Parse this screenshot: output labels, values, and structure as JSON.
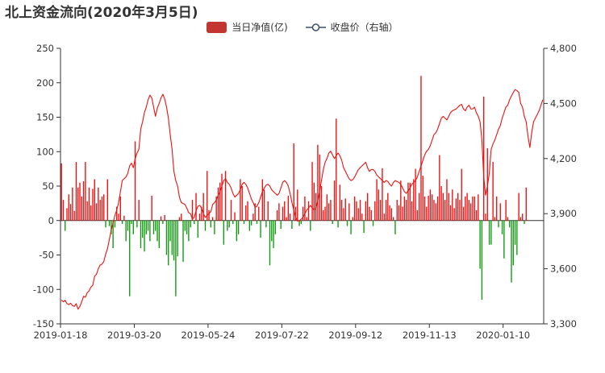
{
  "title": "北上资金流向(2020年3月5日)",
  "legend": {
    "net_inflow_label": "当日净值(亿)",
    "close_label": "收盘价（右轴）"
  },
  "colors": {
    "up": "#ee1111",
    "down": "#119911",
    "legend_bar": "#c23531",
    "line": "#ee1111",
    "axis": "#333333"
  },
  "chart_data": {
    "type": "bar+line",
    "title": "北上资金流向(2020年3月5日)",
    "y_left": {
      "range": [
        -150,
        250
      ],
      "ticks": [
        -150,
        -100,
        -50,
        0,
        50,
        100,
        150,
        200,
        250
      ]
    },
    "y_right": {
      "range": [
        3300,
        4800
      ],
      "ticks": [
        "3,300",
        "3,600",
        "3,900",
        "4,200",
        "4,500",
        "4,800"
      ]
    },
    "x_tick_labels": [
      "2019-01-18",
      "2019-03-20",
      "2019-05-24",
      "2019-07-22",
      "2019-09-12",
      "2019-11-13",
      "2020-01-10"
    ],
    "x_tick_index": [
      0,
      40,
      80,
      120,
      160,
      200,
      240
    ],
    "series": [
      {
        "name": "当日净值(亿)",
        "type": "bar",
        "values": [
          83,
          30,
          -15,
          18,
          38,
          24,
          48,
          14,
          85,
          48,
          55,
          35,
          57,
          85,
          28,
          48,
          22,
          46,
          60,
          25,
          48,
          30,
          35,
          38,
          -10,
          60,
          -8,
          -20,
          -40,
          -10,
          20,
          10,
          35,
          -5,
          7,
          -30,
          -15,
          -110,
          -5,
          -20,
          115,
          -10,
          30,
          -40,
          -25,
          -45,
          -20,
          -15,
          -30,
          36,
          -20,
          -15,
          -30,
          -40,
          6,
          -5,
          8,
          -50,
          -65,
          -30,
          -50,
          -58,
          -110,
          -52,
          5,
          10,
          -60,
          -15,
          -20,
          -30,
          -10,
          30,
          -5,
          40,
          -25,
          10,
          20,
          40,
          -15,
          72,
          15,
          -10,
          5,
          -20,
          35,
          48,
          55,
          68,
          -35,
          72,
          -15,
          -10,
          30,
          -5,
          12,
          -30,
          -20,
          60,
          50,
          -5,
          22,
          28,
          -15,
          -7,
          10,
          25,
          -5,
          20,
          -25,
          60,
          45,
          -10,
          28,
          -65,
          -30,
          -40,
          -20,
          15,
          25,
          -12,
          20,
          28,
          5,
          36,
          10,
          -12,
          112,
          20,
          45,
          -8,
          -5,
          20,
          35,
          5,
          28,
          -15,
          85,
          55,
          40,
          110,
          96,
          50,
          15,
          20,
          38,
          25,
          30,
          -5,
          58,
          148,
          -10,
          52,
          30,
          18,
          32,
          -8,
          25,
          -20,
          5,
          35,
          28,
          18,
          30,
          10,
          -18,
          28,
          40,
          20,
          15,
          -8,
          28,
          60,
          45,
          30,
          76,
          10,
          30,
          40,
          22,
          18,
          5,
          -20,
          30,
          22,
          58,
          20,
          35,
          30,
          55,
          55,
          28,
          60,
          75,
          15,
          40,
          210,
          65,
          35,
          20,
          36,
          45,
          38,
          30,
          25,
          35,
          95,
          50,
          40,
          30,
          60,
          40,
          22,
          45,
          18,
          32,
          40,
          30,
          75,
          20,
          35,
          40,
          30,
          25,
          35,
          35,
          15,
          38,
          -70,
          -115,
          180,
          10,
          105,
          -35,
          -35,
          85,
          5,
          35,
          -10,
          25,
          -20,
          -55,
          30,
          5,
          -10,
          -90,
          -65,
          -35,
          -50,
          40,
          5,
          10,
          -5,
          48
        ]
      },
      {
        "name": "收盘价（右轴）",
        "type": "line",
        "axis": "right",
        "values": [
          3430,
          3420,
          3428,
          3410,
          3405,
          3412,
          3400,
          3395,
          3410,
          3380,
          3395,
          3420,
          3450,
          3445,
          3470,
          3480,
          3500,
          3510,
          3560,
          3570,
          3600,
          3620,
          3625,
          3640,
          3680,
          3710,
          3760,
          3810,
          3850,
          3890,
          3920,
          3960,
          4020,
          4080,
          4090,
          4100,
          4120,
          4160,
          4175,
          4150,
          4200,
          4230,
          4250,
          4360,
          4400,
          4450,
          4480,
          4520,
          4545,
          4530,
          4480,
          4430,
          4475,
          4500,
          4530,
          4550,
          4525,
          4480,
          4420,
          4330,
          4250,
          4130,
          4080,
          4050,
          3990,
          3960,
          3955,
          3950,
          3930,
          3905,
          3900,
          3870,
          3880,
          3915,
          3940,
          3945,
          3930,
          3900,
          3880,
          3890,
          3900,
          3910,
          3950,
          3960,
          3975,
          4000,
          4020,
          4050,
          4080,
          4090,
          4070,
          4060,
          4040,
          4010,
          3990,
          4000,
          4010,
          4030,
          4060,
          4070,
          4060,
          4040,
          4010,
          3980,
          3960,
          3935,
          3940,
          3960,
          3990,
          4020,
          4040,
          4055,
          4060,
          4050,
          4030,
          4020,
          4010,
          4000,
          4010,
          4040,
          4070,
          4080,
          4070,
          4050,
          4010,
          3960,
          3920,
          3880,
          3860,
          3860,
          3870,
          3880,
          3900,
          3920,
          3930,
          3945,
          3930,
          3920,
          3930,
          3970,
          4020,
          4080,
          4140,
          4180,
          4200,
          4230,
          4240,
          4220,
          4200,
          4215,
          4230,
          4215,
          4190,
          4150,
          4130,
          4110,
          4090,
          4080,
          4085,
          4100,
          4120,
          4140,
          4150,
          4160,
          4170,
          4180,
          4150,
          4130,
          4140,
          4140,
          4130,
          4110,
          4100,
          4090,
          4080,
          4070,
          4080,
          4075,
          4060,
          4050,
          4070,
          4080,
          4075,
          4070,
          4060,
          4040,
          4020,
          4010,
          4025,
          4040,
          4060,
          4070,
          4080,
          4100,
          4130,
          4160,
          4190,
          4220,
          4240,
          4250,
          4270,
          4300,
          4330,
          4340,
          4360,
          4390,
          4420,
          4430,
          4420,
          4410,
          4430,
          4450,
          4460,
          4465,
          4470,
          4480,
          4490,
          4495,
          4470,
          4460,
          4480,
          4490,
          4470,
          4470,
          4480,
          4450,
          4430,
          4400,
          4300,
          4100,
          4000,
          4050,
          4120,
          4250,
          4280,
          4300,
          4330,
          4360,
          4380,
          4420,
          4450,
          4480,
          4490,
          4520,
          4540,
          4560,
          4575,
          4570,
          4560,
          4500,
          4480,
          4430,
          4400,
          4320,
          4260,
          4340,
          4400,
          4420,
          4440,
          4460,
          4490,
          4520
        ]
      }
    ]
  }
}
